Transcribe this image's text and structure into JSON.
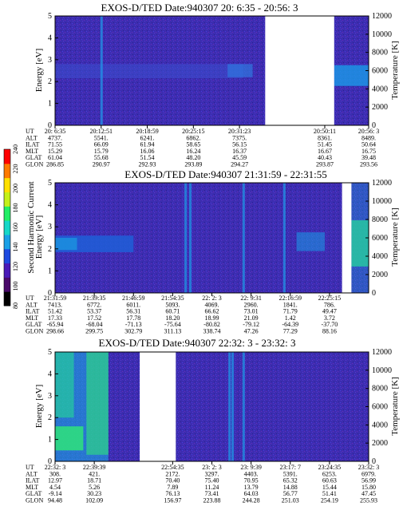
{
  "figure": {
    "colorbar": {
      "label": "Second Harmonic Current",
      "ticks": [
        "80",
        "100",
        "120",
        "140",
        "160",
        "180",
        "200",
        "220",
        "240"
      ],
      "colors": [
        "#000000",
        "#4a0a6a",
        "#4a1ab8",
        "#1e4ae0",
        "#1aa0e6",
        "#16d8c8",
        "#22ee66",
        "#c4f01a",
        "#ffe000",
        "#ff7a00",
        "#ff0000"
      ]
    },
    "background_color": "#3c2db0"
  },
  "chart_data": [
    {
      "type": "heatmap",
      "title": "EXOS-D/TED    Date:940307  20: 6:35 - 20:56: 3",
      "ylabel": "Energy [eV]",
      "y2label": "Temperature [K]",
      "ylim": [
        0,
        5
      ],
      "y2lim": [
        0,
        12000
      ],
      "yticks": [
        "0",
        "1",
        "2",
        "3",
        "4",
        "5"
      ],
      "y2ticks": [
        "0",
        "2000",
        "4000",
        "6000",
        "8000",
        "10000",
        "12000"
      ],
      "gap": [
        0.67,
        0.89
      ],
      "vlines": [
        0.147
      ],
      "bands": [
        {
          "x0": 0.0,
          "x1": 0.6,
          "y0": 2.15,
          "y1": 2.8,
          "color": "#3a4ed0",
          "opacity": 0.55
        },
        {
          "x0": 0.55,
          "x1": 0.63,
          "y0": 2.2,
          "y1": 2.8,
          "color": "#2f78e0",
          "opacity": 0.7
        },
        {
          "x0": 0.89,
          "x1": 1.0,
          "y0": 1.8,
          "y1": 2.75,
          "color": "#1a9ae8",
          "opacity": 0.8
        }
      ],
      "orbit": {
        "labels": [
          "UT",
          "ALT",
          "ILAT",
          "MLT",
          "GLAT",
          "GLON"
        ],
        "columns": [
          {
            "pos": 0.0,
            "values": [
              "20: 6:35",
              "4737.",
              "71.55",
              "15.29",
              "61.04",
              "286.85"
            ]
          },
          {
            "pos": 0.147,
            "values": [
              "20:12:51",
              "5541.",
              "66.09",
              "15.79",
              "55.68",
              "290.97"
            ]
          },
          {
            "pos": 0.294,
            "values": [
              "20:18:59",
              "6241.",
              "61.94",
              "16.06",
              "51.54",
              "292.93"
            ]
          },
          {
            "pos": 0.441,
            "values": [
              "20:25:15",
              "6862.",
              "58.65",
              "16.24",
              "48.20",
              "293.89"
            ]
          },
          {
            "pos": 0.588,
            "values": [
              "20:31:23",
              "7375.",
              "56.15",
              "16.37",
              "45.59",
              "294.27"
            ]
          },
          {
            "pos": 0.86,
            "values": [
              "20:50:11",
              "8361.",
              "51.45",
              "16.67",
              "40.43",
              "293.87"
            ]
          },
          {
            "pos": 1.0,
            "values": [
              "20:56: 3",
              "8489.",
              "50.64",
              "16.75",
              "39.48",
              "293.56"
            ]
          }
        ]
      }
    },
    {
      "type": "heatmap",
      "title": "EXOS-D/TED    Date:940307  21:31:59 - 22:31:55",
      "ylabel": "Energy [eV]",
      "y2label": "Temperature [K]",
      "ylim": [
        0,
        5
      ],
      "y2lim": [
        0,
        12000
      ],
      "yticks": [
        "0",
        "1",
        "2",
        "3",
        "4",
        "5"
      ],
      "y2ticks": [
        "0",
        "2000",
        "4000",
        "6000",
        "8000",
        "10000",
        "12000"
      ],
      "gap": [
        0.915,
        0.945
      ],
      "vlines": [
        0.415,
        0.43,
        0.6,
        0.73
      ],
      "bands": [
        {
          "x0": 0.0,
          "x1": 0.25,
          "y0": 1.85,
          "y1": 2.6,
          "color": "#1e5fd8",
          "opacity": 0.85
        },
        {
          "x0": 0.0,
          "x1": 0.07,
          "y0": 1.95,
          "y1": 2.5,
          "color": "#18a8e4",
          "opacity": 0.6
        },
        {
          "x0": 0.77,
          "x1": 0.86,
          "y0": 1.9,
          "y1": 2.75,
          "color": "#1a9ae8",
          "opacity": 0.55
        },
        {
          "x0": 0.945,
          "x1": 1.0,
          "y0": 1.2,
          "y1": 3.3,
          "color": "#2ee47a",
          "opacity": 0.8
        },
        {
          "x0": 0.945,
          "x1": 1.0,
          "y0": 0.0,
          "y1": 5.0,
          "color": "#1aa6e6",
          "opacity": 0.35
        }
      ],
      "orbit": {
        "labels": [
          "UT",
          "ALT",
          "ILAT",
          "MLT",
          "GLAT",
          "GLON"
        ],
        "columns": [
          {
            "pos": 0.0,
            "values": [
              "21:31:59",
              "7413.",
              "51.42",
              "17.33",
              "-65.94",
              "298.66"
            ]
          },
          {
            "pos": 0.125,
            "values": [
              "21:39:35",
              "6772.",
              "53.37",
              "17.52",
              "-68.04",
              "299.75"
            ]
          },
          {
            "pos": 0.25,
            "values": [
              "21:46:59",
              "6011.",
              "56.31",
              "17.78",
              "-71.13",
              "302.79"
            ]
          },
          {
            "pos": 0.375,
            "values": [
              "21:54:35",
              "5093.",
              "60.71",
              "18.20",
              "-75.64",
              "311.13"
            ]
          },
          {
            "pos": 0.5,
            "values": [
              "22: 2: 3",
              "4069.",
              "66.62",
              "18.99",
              "-80.82",
              "338.74"
            ]
          },
          {
            "pos": 0.625,
            "values": [
              "22: 9:31",
              "2960.",
              "73.01",
              "21.09",
              "-79.12",
              "47.26"
            ]
          },
          {
            "pos": 0.75,
            "values": [
              "22:16:59",
              "1841.",
              "71.79",
              "1.42",
              "-64.39",
              "77.29"
            ]
          },
          {
            "pos": 0.875,
            "values": [
              "22:25:15",
              "786.",
              "49.47",
              "3.72",
              "-37.70",
              "88.16"
            ]
          }
        ]
      }
    },
    {
      "type": "heatmap",
      "title": "EXOS-D/TED    Date:940307  22:32: 3 - 23:32: 3",
      "ylabel": "Energy [eV]",
      "y2label": "Temperature [K]",
      "ylim": [
        0,
        5
      ],
      "y2lim": [
        0,
        12000
      ],
      "yticks": [
        "0",
        "1",
        "2",
        "3",
        "4",
        "5"
      ],
      "y2ticks": [
        "0",
        "2000",
        "4000",
        "6000",
        "8000",
        "10000",
        "12000"
      ],
      "gap": [
        0.27,
        0.385
      ],
      "vlines": [
        0.555,
        0.565,
        0.6
      ],
      "bands": [
        {
          "x0": 0.0,
          "x1": 0.17,
          "y0": 0.0,
          "y1": 5.0,
          "color": "#1aa6e6",
          "opacity": 0.6
        },
        {
          "x0": 0.0,
          "x1": 0.09,
          "y0": 0.5,
          "y1": 1.6,
          "color": "#2ee47a",
          "opacity": 0.85
        },
        {
          "x0": 0.1,
          "x1": 0.17,
          "y0": 0.3,
          "y1": 5.0,
          "color": "#2ee47a",
          "opacity": 0.6
        },
        {
          "x0": 0.0,
          "x1": 0.06,
          "y0": 2.0,
          "y1": 5.0,
          "color": "#22ee88",
          "opacity": 0.5
        }
      ],
      "orbit": {
        "labels": [
          "UT",
          "ALT",
          "ILAT",
          "MLT",
          "GLAT",
          "GLON"
        ],
        "columns": [
          {
            "pos": 0.0,
            "values": [
              "22:32: 3",
              "308.",
              "12.97",
              "4.54",
              "-9.14",
              "94.48"
            ]
          },
          {
            "pos": 0.125,
            "values": [
              "22:39:39",
              "421.",
              "18.71",
              "5.26",
              "30.23",
              "102.09"
            ]
          },
          {
            "pos": 0.375,
            "values": [
              "22:54:35",
              "2172.",
              "70.40",
              "7.89",
              "76.13",
              "156.97"
            ]
          },
          {
            "pos": 0.5,
            "values": [
              "23: 2: 3",
              "3297.",
              "75.40",
              "11.24",
              "73.41",
              "223.88"
            ]
          },
          {
            "pos": 0.625,
            "values": [
              "23: 9:39",
              "4403.",
              "70.95",
              "13.79",
              "64.03",
              "244.28"
            ]
          },
          {
            "pos": 0.75,
            "values": [
              "23:17: 7",
              "5391.",
              "65.32",
              "14.88",
              "56.77",
              "251.03"
            ]
          },
          {
            "pos": 0.875,
            "values": [
              "23:24:35",
              "6253.",
              "60.63",
              "15.44",
              "51.41",
              "254.19"
            ]
          },
          {
            "pos": 1.0,
            "values": [
              "23:32: 3",
              "6979.",
              "56.99",
              "15.80",
              "47.45",
              "255.93"
            ]
          }
        ]
      }
    }
  ]
}
